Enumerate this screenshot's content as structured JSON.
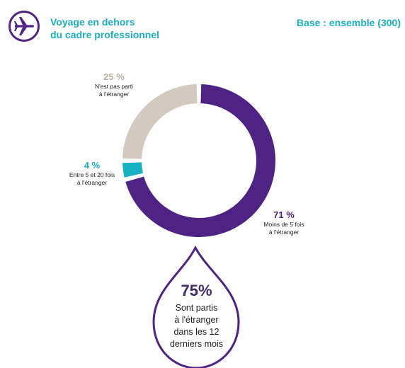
{
  "header": {
    "title_line1": "Voyage en dehors",
    "title_line2": "du cadre professionnel",
    "icon": "airplane-icon",
    "base": "Base : ensemble (300)"
  },
  "colors": {
    "accent_teal": "#1aaec0",
    "purple": "#4e2383",
    "beige": "#d2c9bf",
    "teal": "#19b2c2"
  },
  "chart_data": {
    "type": "pie",
    "variant": "donut",
    "title": "",
    "slices": [
      {
        "label": "Moins de 5 fois à l'étranger",
        "value": 71,
        "display": "71 %",
        "color": "#4e2383"
      },
      {
        "label": "Entre 5 et 20 fois à l'étranger",
        "value": 4,
        "display": "4 %",
        "color": "#19b2c2"
      },
      {
        "label": "N'est pas parti à l'étranger",
        "value": 25,
        "display": "25 %",
        "color": "#d2c9bf"
      }
    ]
  },
  "callout": {
    "value": "75%",
    "line1": "Sont partis",
    "line2": "à l'étranger",
    "line3": "dans les 12",
    "line4": "derniers mois"
  }
}
